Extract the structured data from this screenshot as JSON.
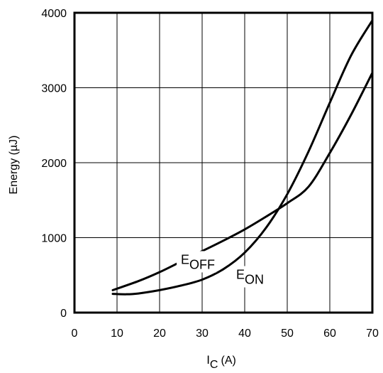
{
  "chart_data": {
    "type": "line",
    "xlabel": "I",
    "xlabel_sub": "C",
    "xlabel_unit": "(A)",
    "ylabel": "Energy (µJ)",
    "xlim": [
      0,
      70
    ],
    "ylim": [
      0,
      4000
    ],
    "grid": true,
    "x_ticks": [
      0,
      10,
      20,
      30,
      40,
      50,
      60,
      70
    ],
    "x_tick_labels": [
      "0",
      "10",
      "20",
      "30",
      "40",
      "50",
      "60",
      "70"
    ],
    "y_ticks": [
      0,
      1000,
      2000,
      3000,
      4000
    ],
    "y_tick_labels": [
      "0",
      "1000",
      "2000",
      "3000",
      "4000"
    ],
    "series": [
      {
        "name": "EOFF",
        "label_main": "E",
        "label_sub": "OFF",
        "color": "#000000",
        "points": [
          [
            9,
            300
          ],
          [
            15,
            420
          ],
          [
            20,
            540
          ],
          [
            25,
            680
          ],
          [
            30,
            820
          ],
          [
            35,
            960
          ],
          [
            40,
            1110
          ],
          [
            45,
            1280
          ],
          [
            50,
            1460
          ],
          [
            55,
            1680
          ],
          [
            60,
            2130
          ],
          [
            65,
            2640
          ],
          [
            70,
            3200
          ]
        ]
      },
      {
        "name": "EON",
        "label_main": "E",
        "label_sub": "ON",
        "color": "#000000",
        "points": [
          [
            9,
            250
          ],
          [
            12,
            245
          ],
          [
            15,
            255
          ],
          [
            20,
            300
          ],
          [
            25,
            360
          ],
          [
            30,
            440
          ],
          [
            35,
            580
          ],
          [
            40,
            800
          ],
          [
            45,
            1130
          ],
          [
            50,
            1580
          ],
          [
            55,
            2150
          ],
          [
            60,
            2800
          ],
          [
            65,
            3430
          ],
          [
            70,
            3900
          ]
        ]
      }
    ]
  }
}
